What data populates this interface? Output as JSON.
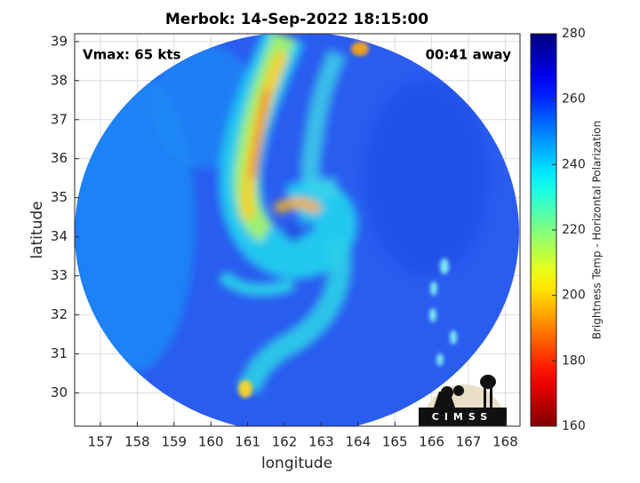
{
  "chart_data": {
    "type": "image",
    "title": "Merbok: 14-Sep-2022 18:15:00",
    "x_label": "longitude",
    "y_label": "latitude",
    "xlim": [
      156.3,
      168.4
    ],
    "ylim": [
      29.15,
      39.2
    ],
    "xticks": [
      157,
      158,
      159,
      160,
      161,
      162,
      163,
      164,
      165,
      166,
      167,
      168
    ],
    "yticks": [
      30,
      31,
      32,
      33,
      34,
      35,
      36,
      37,
      38,
      39
    ],
    "grid": true,
    "annotations": [
      "Vmax: 65 kts",
      "00:41 away"
    ],
    "logo": "CIMSS",
    "colorbar": {
      "label": "Brightness Temp - Horizontal Polarization",
      "clim": [
        160,
        280
      ],
      "ticks": [
        160,
        180,
        200,
        220,
        240,
        260,
        280
      ],
      "colormap": "jet_r"
    }
  }
}
